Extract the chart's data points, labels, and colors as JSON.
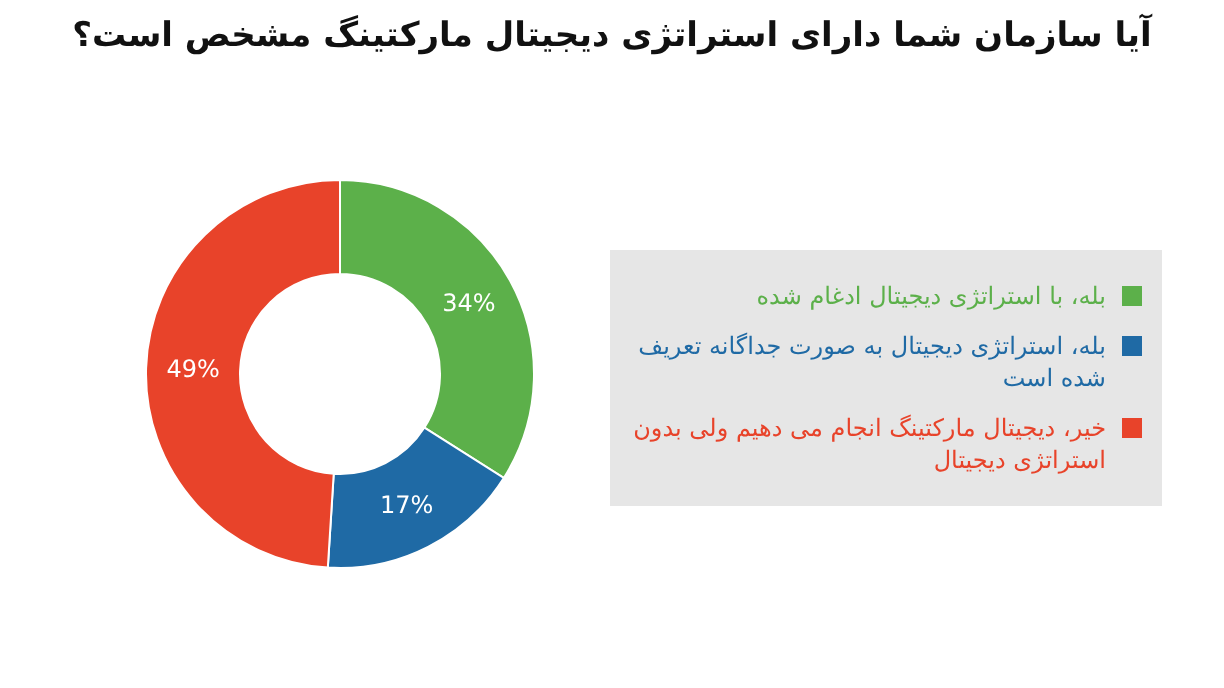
{
  "chart_data": {
    "type": "donut",
    "title": "آیا سازمان شما دارای استراتژی دیجیتال مارکتینگ مشخص است؟",
    "categories": [
      "بله، با استراتژی دیجیتال ادغام شده",
      "بله، استراتژی دیجیتال به صورت جداگانه تعریف شده است",
      "خیر، دیجیتال مارکتینگ انجام می دهیم ولی بدون استراتژی دیجیتال"
    ],
    "values": [
      34,
      17,
      49
    ],
    "colors": [
      "#5cb04a",
      "#1f6aa5",
      "#e8432a"
    ],
    "value_labels": [
      "34%",
      "17%",
      "49%"
    ],
    "legend": "right"
  }
}
